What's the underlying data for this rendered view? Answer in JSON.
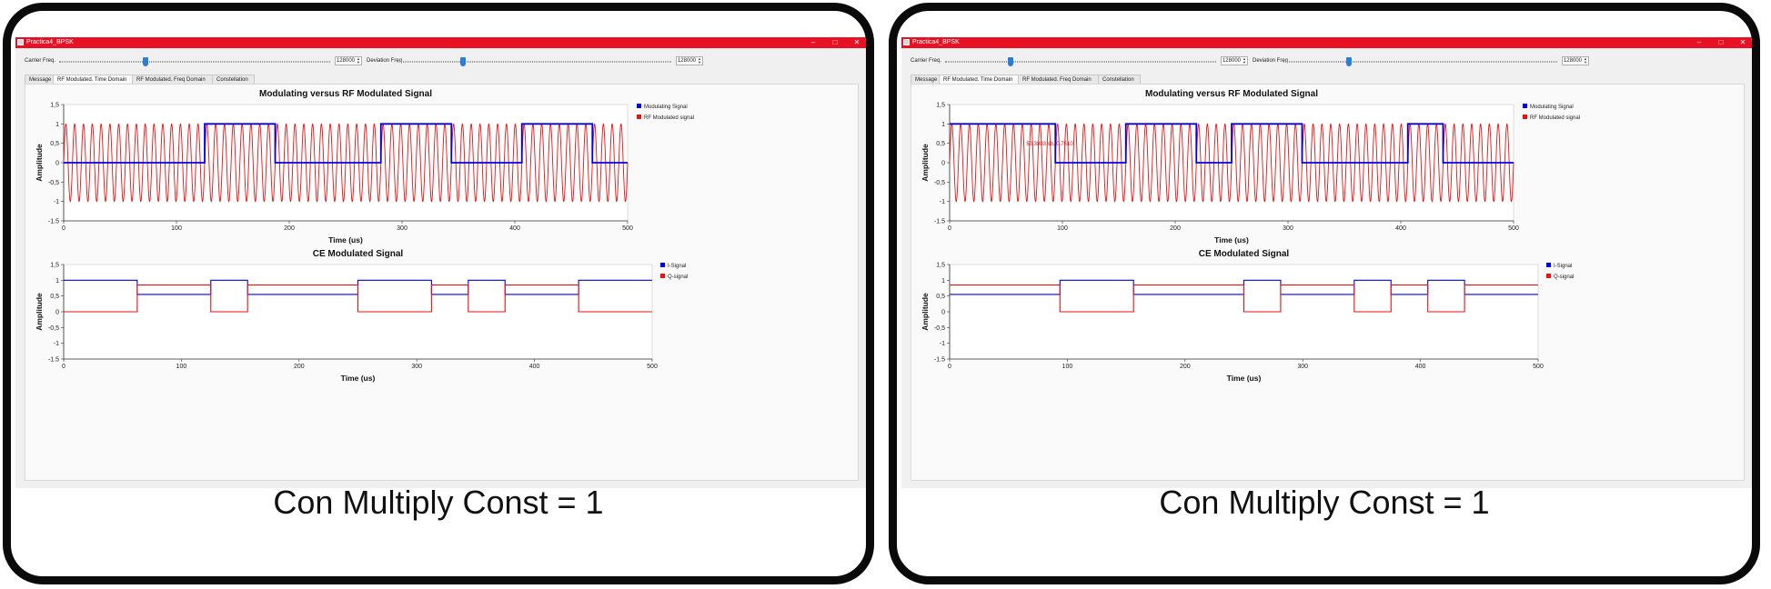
{
  "panels": [
    {
      "window_title": "Practica4_BPSK",
      "window_buttons": [
        "–",
        "□",
        "✕"
      ],
      "controls": {
        "carrier_label": "Carrier Freq.",
        "carrier_value": "128000",
        "carrier_level": 0.32,
        "deviation_label": "Deviation Freq",
        "deviation_value": "128000",
        "deviation_level": 0.24
      },
      "tabs": [
        "Message",
        "RF Modulated. Time Domain",
        "RF Modulated. Freq Domain",
        "Constellation"
      ],
      "active_tab": 1,
      "caption": "Con Multiply Const = 1",
      "annotation": "",
      "chart_data": [
        {
          "type": "line",
          "title": "Modulating versus RF Modulated Signal",
          "xlabel": "Time (us)",
          "ylabel": "Amplitude",
          "xlim": [
            0,
            500
          ],
          "ylim": [
            -1.5,
            1.5
          ],
          "xticks": [
            "0",
            "100",
            "200",
            "300",
            "400",
            "500"
          ],
          "yticks": [
            "1,5",
            "1",
            "0,5",
            "0",
            "-0,5",
            "-1",
            "-1.5"
          ],
          "legend_position": "top-right",
          "series": [
            {
              "name": "Modulating Signal",
              "color": "#0000ee",
              "kind": "step",
              "x": [
                0,
                125,
                125,
                187.5,
                187.5,
                281.25,
                281.25,
                343.75,
                343.75,
                406.25,
                406.25,
                468.75,
                468.75,
                500
              ],
              "y": [
                0,
                0,
                1,
                1,
                0,
                0,
                1,
                1,
                0,
                0,
                1,
                1,
                0,
                0
              ]
            },
            {
              "name": "RF Modulated signal",
              "color": "#ee1111",
              "kind": "sine",
              "cycles": 64,
              "amplitude": 1
            }
          ]
        },
        {
          "type": "line",
          "title": "CE Modulated Signal",
          "xlabel": "Time (us)",
          "ylabel": "Amplitude",
          "xlim": [
            0,
            500
          ],
          "ylim": [
            -1.5,
            1.5
          ],
          "xticks": [
            "0",
            "100",
            "200",
            "300",
            "400",
            "500"
          ],
          "yticks": [
            "1,5",
            "1",
            "0,5",
            "0",
            "-0,5",
            "-1",
            "-1.5"
          ],
          "legend_position": "top-right",
          "series": [
            {
              "name": "I-Signal",
              "color": "#0000ee",
              "kind": "step",
              "x": [
                0,
                62.5,
                62.5,
                125,
                125,
                156.25,
                156.25,
                250,
                250,
                312.5,
                312.5,
                343.75,
                343.75,
                375,
                375,
                437.5,
                437.5,
                500
              ],
              "y": [
                1,
                1,
                0.55,
                0.55,
                1,
                1,
                0.55,
                0.55,
                1,
                1,
                0.55,
                0.55,
                1,
                1,
                0.55,
                0.55,
                1,
                1
              ]
            },
            {
              "name": "Q-signal",
              "color": "#ee1111",
              "kind": "step",
              "x": [
                0,
                62.5,
                62.5,
                125,
                125,
                156.25,
                156.25,
                250,
                250,
                312.5,
                312.5,
                343.75,
                343.75,
                375,
                375,
                437.5,
                437.5,
                500
              ],
              "y": [
                0,
                0,
                0.85,
                0.85,
                0,
                0,
                0.85,
                0.85,
                0,
                0,
                0.85,
                0.85,
                0,
                0,
                0.85,
                0.85,
                0,
                0
              ]
            }
          ]
        }
      ]
    },
    {
      "window_title": "Practica4_BPSK",
      "window_buttons": [
        "–",
        "□",
        "✕"
      ],
      "controls": {
        "carrier_label": "Carrier Freq.",
        "carrier_value": "128000",
        "carrier_level": 0.24,
        "deviation_label": "Deviation Freq",
        "deviation_value": "128000",
        "deviation_level": 0.24
      },
      "tabs": [
        "Message",
        "RF Modulated. Time Domain",
        "RF Modulated. Freq Domain",
        "Constellation"
      ],
      "active_tab": 1,
      "caption": "Con Multiply Const = 1",
      "annotation": "50.3803 sb, 0.7510",
      "chart_data": [
        {
          "type": "line",
          "title": "Modulating versus RF Modulated Signal",
          "xlabel": "Time (us)",
          "ylabel": "Amplitude",
          "xlim": [
            0,
            500
          ],
          "ylim": [
            -1.5,
            1.5
          ],
          "xticks": [
            "0",
            "100",
            "200",
            "300",
            "400",
            "500"
          ],
          "yticks": [
            "1,5",
            "1",
            "0,5",
            "0",
            "-0,5",
            "-1",
            "-1.5"
          ],
          "legend_position": "top-right",
          "series": [
            {
              "name": "Modulating Signal",
              "color": "#0000ee",
              "kind": "step",
              "x": [
                0,
                93.75,
                93.75,
                156.25,
                156.25,
                218.75,
                218.75,
                250,
                250,
                312.5,
                312.5,
                406.25,
                406.25,
                437.5,
                437.5,
                500
              ],
              "y": [
                1,
                1,
                0,
                0,
                1,
                1,
                0,
                0,
                1,
                1,
                0,
                0,
                1,
                1,
                0,
                0
              ]
            },
            {
              "name": "RF Modulated signal",
              "color": "#ee1111",
              "kind": "sine",
              "cycles": 64,
              "amplitude": 1
            }
          ]
        },
        {
          "type": "line",
          "title": "CE Modulated Signal",
          "xlabel": "Time (us)",
          "ylabel": "Amplitude",
          "xlim": [
            0,
            500
          ],
          "ylim": [
            -1.5,
            1.5
          ],
          "xticks": [
            "0",
            "100",
            "200",
            "300",
            "400",
            "500"
          ],
          "yticks": [
            "1,5",
            "1",
            "0,5",
            "0",
            "-0,5",
            "-1",
            "-1.5"
          ],
          "legend_position": "top-right",
          "series": [
            {
              "name": "I-Signal",
              "color": "#0000ee",
              "kind": "step",
              "x": [
                0,
                93.75,
                93.75,
                156.25,
                156.25,
                250,
                250,
                281.25,
                281.25,
                343.75,
                343.75,
                375,
                375,
                406.25,
                406.25,
                437.5,
                437.5,
                500
              ],
              "y": [
                0.55,
                0.55,
                1,
                1,
                0.55,
                0.55,
                1,
                1,
                0.55,
                0.55,
                1,
                1,
                0.55,
                0.55,
                1,
                1,
                0.55,
                0.55
              ]
            },
            {
              "name": "Q-signal",
              "color": "#ee1111",
              "kind": "step",
              "x": [
                0,
                93.75,
                93.75,
                156.25,
                156.25,
                250,
                250,
                281.25,
                281.25,
                343.75,
                343.75,
                375,
                375,
                406.25,
                406.25,
                437.5,
                437.5,
                500
              ],
              "y": [
                0.85,
                0.85,
                0,
                0,
                0.85,
                0.85,
                0,
                0,
                0.85,
                0.85,
                0,
                0,
                0.85,
                0.85,
                0,
                0,
                0.85,
                0.85
              ]
            }
          ]
        }
      ]
    }
  ]
}
